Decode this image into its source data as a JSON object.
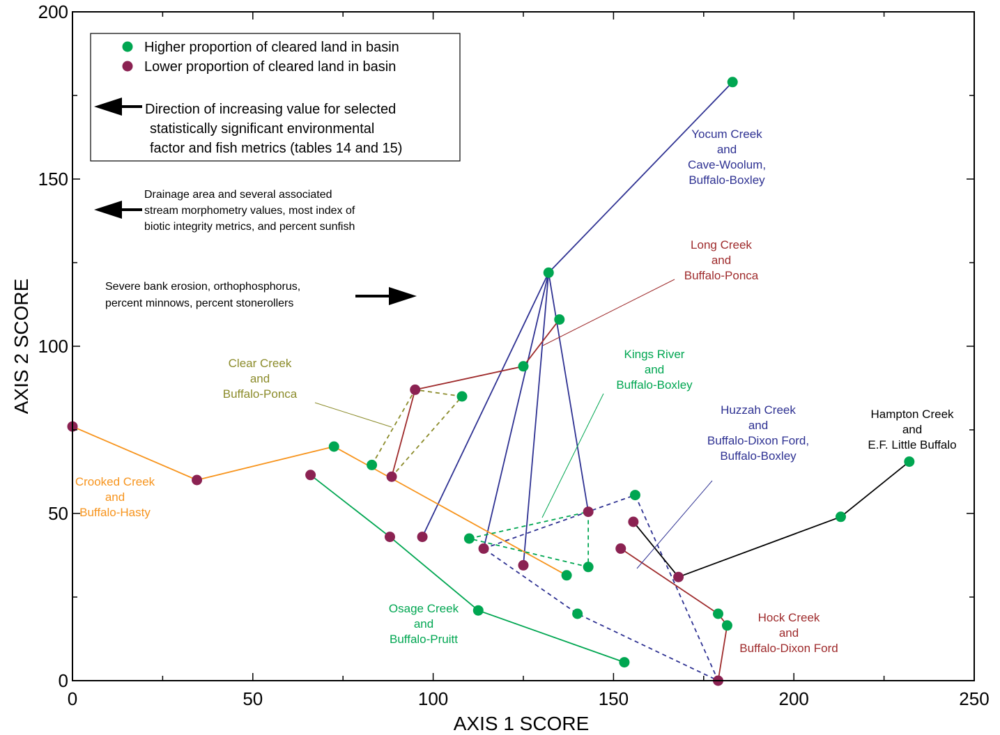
{
  "chart_data": {
    "type": "scatter",
    "xlabel": "AXIS 1 SCORE",
    "ylabel": "AXIS 2 SCORE",
    "xlim": [
      0,
      250
    ],
    "ylim": [
      0,
      200
    ],
    "x_ticks": [
      "0",
      "50",
      "100",
      "150",
      "200",
      "250"
    ],
    "y_ticks": [
      "0",
      "50",
      "100",
      "150",
      "200"
    ],
    "grid": false,
    "legend": {
      "position": "top-left",
      "entries": [
        {
          "label": "Higher proportion of cleared land in basin",
          "color": "#00a651"
        },
        {
          "label": "Lower proportion of cleared land in basin",
          "color": "#8b2252"
        }
      ],
      "arrow_text": [
        "Direction of increasing value for selected",
        "statistically significant environmental",
        "factor and fish metrics (tables 14 and 15)"
      ]
    },
    "annotations": [
      {
        "lines": [
          "Drainage area and several associated",
          "stream morphometry values, most index of",
          "biotic integrity metrics, and percent sunfish"
        ],
        "arrow": "left"
      },
      {
        "lines": [
          "Severe bank erosion, orthophosphorus,",
          "percent minnows, percent stonerollers"
        ],
        "arrow": "right"
      }
    ],
    "groups": [
      {
        "label": [
          "Yocum Creek",
          "and",
          "Cave-Woolum,",
          "Buffalo-Boxley"
        ],
        "color": "#2e3192",
        "points": [
          [
            183,
            179,
            "H"
          ],
          [
            132,
            122,
            "H"
          ],
          [
            97,
            43,
            "L"
          ],
          [
            114,
            39.5,
            "L"
          ],
          [
            125,
            34.5,
            "L"
          ],
          [
            143,
            50.5,
            "L"
          ]
        ],
        "lines": [
          {
            "path": [
              [
                183,
                179
              ],
              [
                132,
                122
              ]
            ],
            "dash": false
          },
          {
            "path": [
              [
                97,
                43
              ],
              [
                132,
                122
              ],
              [
                114,
                39.5
              ]
            ],
            "dash": false
          },
          {
            "path": [
              [
                125,
                34.5
              ],
              [
                132,
                122
              ],
              [
                143,
                50.5
              ]
            ],
            "dash": false
          }
        ]
      },
      {
        "label": [
          "Long Creek",
          "and",
          "Buffalo-Ponca"
        ],
        "color": "#9e2a2b",
        "points": [
          [
            135,
            108,
            "H"
          ],
          [
            125,
            94,
            "H"
          ],
          [
            95,
            87,
            "L"
          ],
          [
            88.5,
            61,
            "L"
          ]
        ],
        "lines": [
          {
            "path": [
              [
                135,
                108
              ],
              [
                125,
                94
              ],
              [
                95,
                87
              ],
              [
                88.5,
                61
              ]
            ],
            "dash": false
          }
        ]
      },
      {
        "label": [
          "Clear Creek",
          "and",
          "Buffalo-Ponca"
        ],
        "color": "#8b8b2a",
        "points": [
          [
            108,
            85,
            "H"
          ],
          [
            83,
            64.5,
            "H"
          ]
        ],
        "lines": [
          {
            "path": [
              [
                83,
                64.5
              ],
              [
                95,
                87
              ],
              [
                108,
                85
              ],
              [
                88.5,
                61
              ]
            ],
            "dash": true
          }
        ]
      },
      {
        "label": [
          "Crooked Creek",
          "and",
          "Buffalo-Hasty"
        ],
        "color": "#f7941d",
        "points": [
          [
            0,
            76,
            "L"
          ],
          [
            34.5,
            60,
            "L"
          ],
          [
            72.5,
            70,
            "H"
          ],
          [
            137,
            31.5,
            "H"
          ]
        ],
        "lines": [
          {
            "path": [
              [
                0,
                76
              ],
              [
                34.5,
                60
              ],
              [
                72.5,
                70
              ],
              [
                137,
                31.5
              ]
            ],
            "dash": false
          }
        ]
      },
      {
        "label": [
          "Osage Creek",
          "and",
          "Buffalo-Pruitt"
        ],
        "color": "#00a651",
        "points": [
          [
            66,
            61.5,
            "L"
          ],
          [
            88,
            43,
            "L"
          ],
          [
            112.5,
            21,
            "H"
          ],
          [
            153,
            5.5,
            "H"
          ]
        ],
        "lines": [
          {
            "path": [
              [
                66,
                61.5
              ],
              [
                88,
                43
              ],
              [
                112.5,
                21
              ],
              [
                153,
                5.5
              ]
            ],
            "dash": false
          }
        ]
      },
      {
        "label": [
          "Kings River",
          "and",
          "Buffalo-Boxley"
        ],
        "color": "#00a651",
        "points": [
          [
            110,
            42.5,
            "H"
          ],
          [
            143,
            34,
            "H"
          ]
        ],
        "lines": [
          {
            "path": [
              [
                110,
                42.5
              ],
              [
                143,
                50.5
              ],
              [
                143,
                34
              ],
              [
                110,
                42.5
              ]
            ],
            "dash": true
          }
        ]
      },
      {
        "label": [
          "Huzzah Creek",
          "and",
          "Buffalo-Dixon Ford,",
          "Buffalo-Boxley"
        ],
        "color": "#2e3192",
        "points": [
          [
            156,
            55.5,
            "H"
          ],
          [
            140,
            20,
            "H"
          ]
        ],
        "lines": [
          {
            "path": [
              [
                114,
                39.5
              ],
              [
                156,
                55.5
              ],
              [
                179,
                0
              ],
              [
                140,
                20
              ],
              [
                114,
                39.5
              ]
            ],
            "dash": true
          }
        ]
      },
      {
        "label": [
          "Hampton Creek",
          "and",
          "E.F. Little Buffalo"
        ],
        "color": "#000000",
        "points": [
          [
            232,
            65.5,
            "H"
          ],
          [
            213,
            49,
            "H"
          ],
          [
            168,
            31,
            "L"
          ],
          [
            155.5,
            47.5,
            "L"
          ]
        ],
        "lines": [
          {
            "path": [
              [
                232,
                65.5
              ],
              [
                213,
                49
              ],
              [
                168,
                31
              ],
              [
                155.5,
                47.5
              ]
            ],
            "dash": false
          }
        ]
      },
      {
        "label": [
          "Hock Creek",
          "and",
          "Buffalo-Dixon Ford"
        ],
        "color": "#9e2a2b",
        "points": [
          [
            152,
            39.5,
            "L"
          ],
          [
            179,
            20,
            "H"
          ],
          [
            181.5,
            16.5,
            "H"
          ],
          [
            179,
            0,
            "L"
          ]
        ],
        "lines": [
          {
            "path": [
              [
                152,
                39.5
              ],
              [
                179,
                20
              ],
              [
                181.5,
                16.5
              ],
              [
                179,
                0
              ]
            ],
            "dash": false
          }
        ]
      }
    ]
  }
}
